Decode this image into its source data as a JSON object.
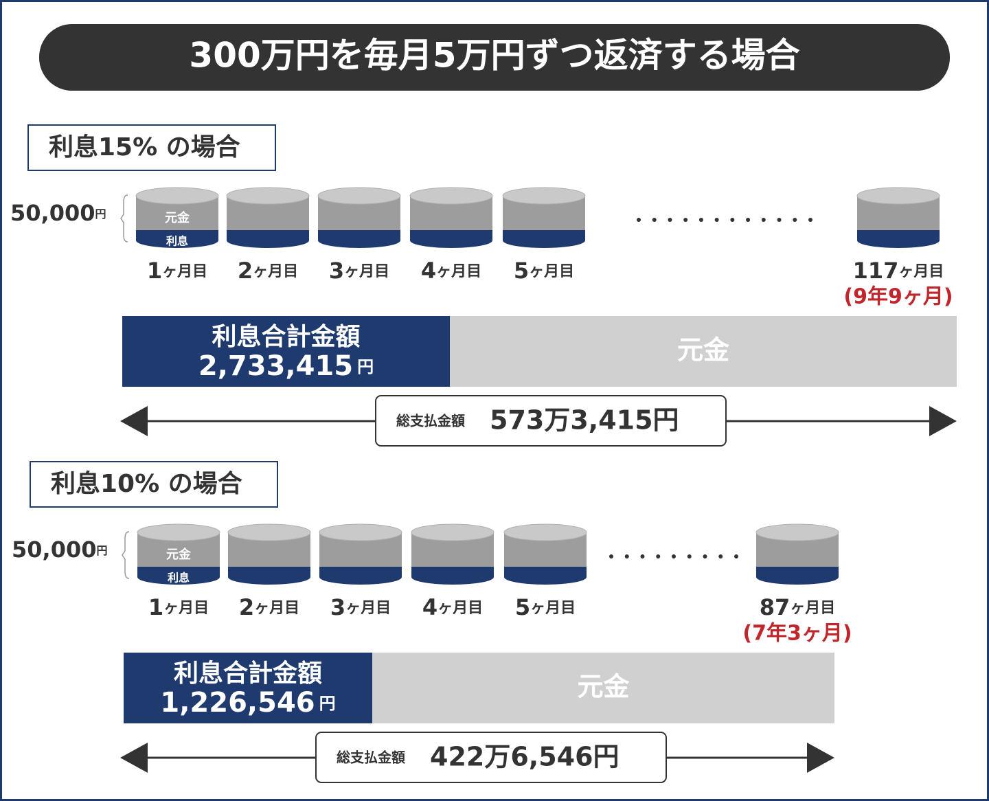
{
  "title": "300万円を毎月5万円ずつ返済する場合",
  "sections": [
    {
      "heading": "利息15% の場合",
      "payment": {
        "amount": "50,000",
        "unit": "円"
      },
      "coin_labels": {
        "principal": "元金",
        "interest": "利息"
      },
      "months": [
        {
          "num": "1",
          "unit": "ヶ月目"
        },
        {
          "num": "2",
          "unit": "ヶ月目"
        },
        {
          "num": "3",
          "unit": "ヶ月目"
        },
        {
          "num": "4",
          "unit": "ヶ月目"
        },
        {
          "num": "5",
          "unit": "ヶ月目"
        },
        {
          "num": "117",
          "unit": "ヶ月目"
        }
      ],
      "duration": "(9年9ヶ月)",
      "interest_total": {
        "label": "利息合計金額",
        "amount": "2,733,415",
        "unit": "円"
      },
      "principal_label": "元金",
      "total_payment": {
        "label": "総支払金額",
        "amount": "573万3,415円"
      }
    },
    {
      "heading": "利息10% の場合",
      "payment": {
        "amount": "50,000",
        "unit": "円"
      },
      "coin_labels": {
        "principal": "元金",
        "interest": "利息"
      },
      "months": [
        {
          "num": "1",
          "unit": "ヶ月目"
        },
        {
          "num": "2",
          "unit": "ヶ月目"
        },
        {
          "num": "3",
          "unit": "ヶ月目"
        },
        {
          "num": "4",
          "unit": "ヶ月目"
        },
        {
          "num": "5",
          "unit": "ヶ月目"
        },
        {
          "num": "87",
          "unit": "ヶ月目"
        }
      ],
      "duration": "(7年3ヶ月)",
      "interest_total": {
        "label": "利息合計金額",
        "amount": "1,226,546",
        "unit": "円"
      },
      "principal_label": "元金",
      "total_payment": {
        "label": "総支払金額",
        "amount": "422万6,546円"
      }
    }
  ]
}
